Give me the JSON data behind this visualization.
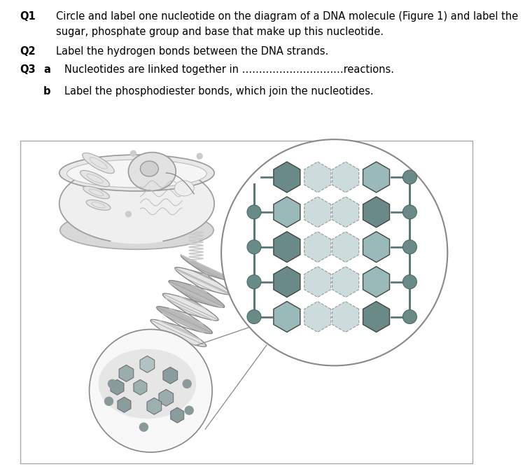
{
  "q1_label": "Q1",
  "q1_text1": "Circle and label one nucleotide on the diagram of a DNA molecule (Figure 1) and label the",
  "q1_text2": "sugar, phosphate group and base that make up this nucleotide.",
  "q2_label": "Q2",
  "q2_text": "Label the hydrogen bonds between the DNA strands.",
  "q3_label": "Q3",
  "q3a_label": "a",
  "q3a_text": "Nucleotides are linked together in …………………………reactions.",
  "q3b_label": "b",
  "q3b_text": "Label the phosphodiester bonds, which join the nucleotides.",
  "background": "#ffffff",
  "box_edge": "#aaaaaa",
  "cell_fill": "#f0f0f0",
  "cell_edge": "#999999",
  "helix_dark": "#b8b8b8",
  "helix_light": "#e5e5e5",
  "helix_edge": "#999999",
  "backbone_fill": "#6a8a88",
  "backbone_edge": "#4a6a68",
  "hex_dark": "#6a8a88",
  "hex_light": "#9ababa",
  "hex_mid_fill": "#ccdcdc",
  "hex_mid_edge": "#999999",
  "coil_color": "#cccccc",
  "line_color": "#888888"
}
